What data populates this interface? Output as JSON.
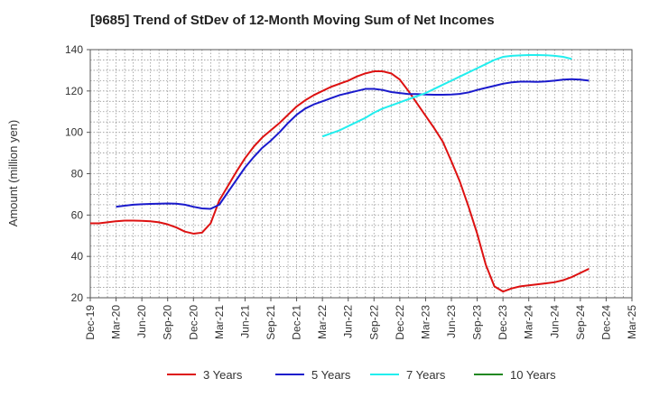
{
  "chart_data": {
    "type": "line",
    "title": "[9685]  Trend of StDev of 12-Month Moving Sum of Net Incomes",
    "xlabel": "",
    "ylabel": "Amount (million yen)",
    "ylim": [
      20,
      140
    ],
    "yticks": [
      20,
      40,
      60,
      80,
      100,
      120,
      140
    ],
    "x_tick_labels": [
      "Dec-19",
      "Mar-20",
      "Jun-20",
      "Sep-20",
      "Dec-20",
      "Mar-21",
      "Jun-21",
      "Sep-21",
      "Dec-21",
      "Mar-22",
      "Jun-22",
      "Sep-22",
      "Dec-22",
      "Mar-23",
      "Jun-23",
      "Sep-23",
      "Dec-23",
      "Mar-24",
      "Jun-24",
      "Sep-24",
      "Dec-24",
      "Mar-25"
    ],
    "x_start": "Dec-19",
    "x_months": [
      "Dec-19",
      "Jan-20",
      "Feb-20",
      "Mar-20",
      "Apr-20",
      "May-20",
      "Jun-20",
      "Jul-20",
      "Aug-20",
      "Sep-20",
      "Oct-20",
      "Nov-20",
      "Dec-20",
      "Jan-21",
      "Feb-21",
      "Mar-21",
      "Apr-21",
      "May-21",
      "Jun-21",
      "Jul-21",
      "Aug-21",
      "Sep-21",
      "Oct-21",
      "Nov-21",
      "Dec-21",
      "Jan-22",
      "Feb-22",
      "Mar-22",
      "Apr-22",
      "May-22",
      "Jun-22",
      "Jul-22",
      "Aug-22",
      "Sep-22",
      "Oct-22",
      "Nov-22",
      "Dec-22",
      "Jan-23",
      "Feb-23",
      "Mar-23",
      "Apr-23",
      "May-23",
      "Jun-23",
      "Jul-23",
      "Aug-23",
      "Sep-23",
      "Oct-23",
      "Nov-23",
      "Dec-23",
      "Jan-24",
      "Feb-24",
      "Mar-24",
      "Apr-24",
      "May-24",
      "Jun-24",
      "Jul-24",
      "Aug-24",
      "Sep-24",
      "Oct-24",
      "Nov-24",
      "Dec-24",
      "Jan-25",
      "Feb-25",
      "Mar-25"
    ],
    "grid": true,
    "legend_position": "bottom",
    "series": [
      {
        "name": "3 Years",
        "color": "#dd1111",
        "start": "Dec-19",
        "values": [
          56,
          56,
          56.5,
          57,
          57.3,
          57.3,
          57.2,
          57,
          56.5,
          55.5,
          54,
          52,
          51,
          51.5,
          56,
          67,
          74,
          81,
          87.5,
          93,
          97.5,
          101,
          104.5,
          108.5,
          112.5,
          115.5,
          118,
          120,
          122,
          123.5,
          125,
          127,
          128.5,
          129.5,
          129.5,
          128.5,
          125.5,
          120,
          114,
          108,
          102,
          95.5,
          86,
          76,
          64,
          51,
          36,
          25.5,
          23,
          24.5,
          25.5,
          26,
          26.5,
          27,
          27.5,
          28.5,
          30,
          32,
          34
        ]
      },
      {
        "name": "5 Years",
        "color": "#1a1acc",
        "start": "Mar-20",
        "values": [
          64,
          64.5,
          65,
          65.2,
          65.4,
          65.5,
          65.6,
          65.5,
          65,
          64,
          63.2,
          63,
          65,
          71,
          77,
          83,
          88,
          92.5,
          96,
          100,
          104.5,
          108.5,
          111.5,
          113.5,
          115,
          116.5,
          118,
          119,
          120,
          121,
          121,
          120.5,
          119.5,
          119,
          118.5,
          118.5,
          118.3,
          118.2,
          118.2,
          118.3,
          118.6,
          119.3,
          120.5,
          121.5,
          122.5,
          123.5,
          124.2,
          124.5,
          124.5,
          124.4,
          124.6,
          125,
          125.5,
          125.7,
          125.5,
          125
        ]
      },
      {
        "name": "7 Years",
        "color": "#22eeee",
        "start": "Mar-22",
        "values": [
          98,
          99.5,
          101,
          103,
          105,
          107,
          109.5,
          111.5,
          113,
          114.5,
          116,
          117.5,
          119,
          121,
          123,
          125,
          127,
          129,
          131,
          133,
          135,
          136.5,
          137,
          137.2,
          137.4,
          137.4,
          137.3,
          137,
          136.5,
          135.5
        ]
      },
      {
        "name": "10 Years",
        "color": "#228822",
        "start": "Dec-24",
        "values": []
      }
    ]
  }
}
